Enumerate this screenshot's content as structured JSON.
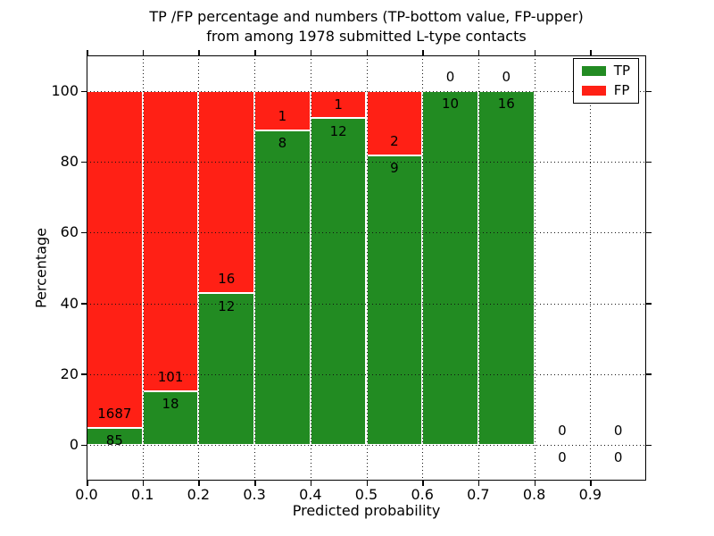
{
  "figure": {
    "title_line1": "TP /FP percentage and numbers (TP-bottom value, FP-upper)",
    "title_line2": "from among 1978 submitted L-type contacts"
  },
  "chart_data": {
    "type": "bar",
    "subtype": "stacked-percentage",
    "title": "TP /FP percentage and numbers (TP-bottom value, FP-upper) from among 1978 submitted L-type contacts",
    "xlabel": "Predicted probability",
    "ylabel": "Percentage",
    "x_tick_labels": [
      "0.0",
      "0.1",
      "0.2",
      "0.3",
      "0.4",
      "0.5",
      "0.6",
      "0.7",
      "0.8",
      "0.9"
    ],
    "y_ticks": [
      0,
      20,
      40,
      60,
      80,
      100
    ],
    "xlim": [
      0.0,
      1.0
    ],
    "ylim": [
      -10,
      110
    ],
    "grid": true,
    "legend_position": "upper right",
    "legend": [
      {
        "name": "TP",
        "color": "#228B22"
      },
      {
        "name": "FP",
        "color": "#FF2015"
      }
    ],
    "total_contacts_in_title": "1978",
    "bins": [
      {
        "x_start": 0.0,
        "x_end": 0.1,
        "tp": 85,
        "fp": 1687,
        "tp_pct": 4.8,
        "fp_pct": 95.2
      },
      {
        "x_start": 0.1,
        "x_end": 0.2,
        "tp": 18,
        "fp": 101,
        "tp_pct": 15.1,
        "fp_pct": 84.9
      },
      {
        "x_start": 0.2,
        "x_end": 0.3,
        "tp": 12,
        "fp": 16,
        "tp_pct": 42.9,
        "fp_pct": 57.1
      },
      {
        "x_start": 0.3,
        "x_end": 0.4,
        "tp": 8,
        "fp": 1,
        "tp_pct": 88.9,
        "fp_pct": 11.1
      },
      {
        "x_start": 0.4,
        "x_end": 0.5,
        "tp": 12,
        "fp": 1,
        "tp_pct": 92.3,
        "fp_pct": 7.7
      },
      {
        "x_start": 0.5,
        "x_end": 0.6,
        "tp": 9,
        "fp": 2,
        "tp_pct": 81.8,
        "fp_pct": 18.2
      },
      {
        "x_start": 0.6,
        "x_end": 0.7,
        "tp": 10,
        "fp": 0,
        "tp_pct": 100,
        "fp_pct": 0
      },
      {
        "x_start": 0.7,
        "x_end": 0.8,
        "tp": 16,
        "fp": 0,
        "tp_pct": 100,
        "fp_pct": 0
      },
      {
        "x_start": 0.8,
        "x_end": 0.9,
        "tp": 0,
        "fp": 0,
        "tp_pct": 0,
        "fp_pct": 0
      },
      {
        "x_start": 0.9,
        "x_end": 1.0,
        "tp": 0,
        "fp": 0,
        "tp_pct": 0,
        "fp_pct": 0
      }
    ]
  }
}
